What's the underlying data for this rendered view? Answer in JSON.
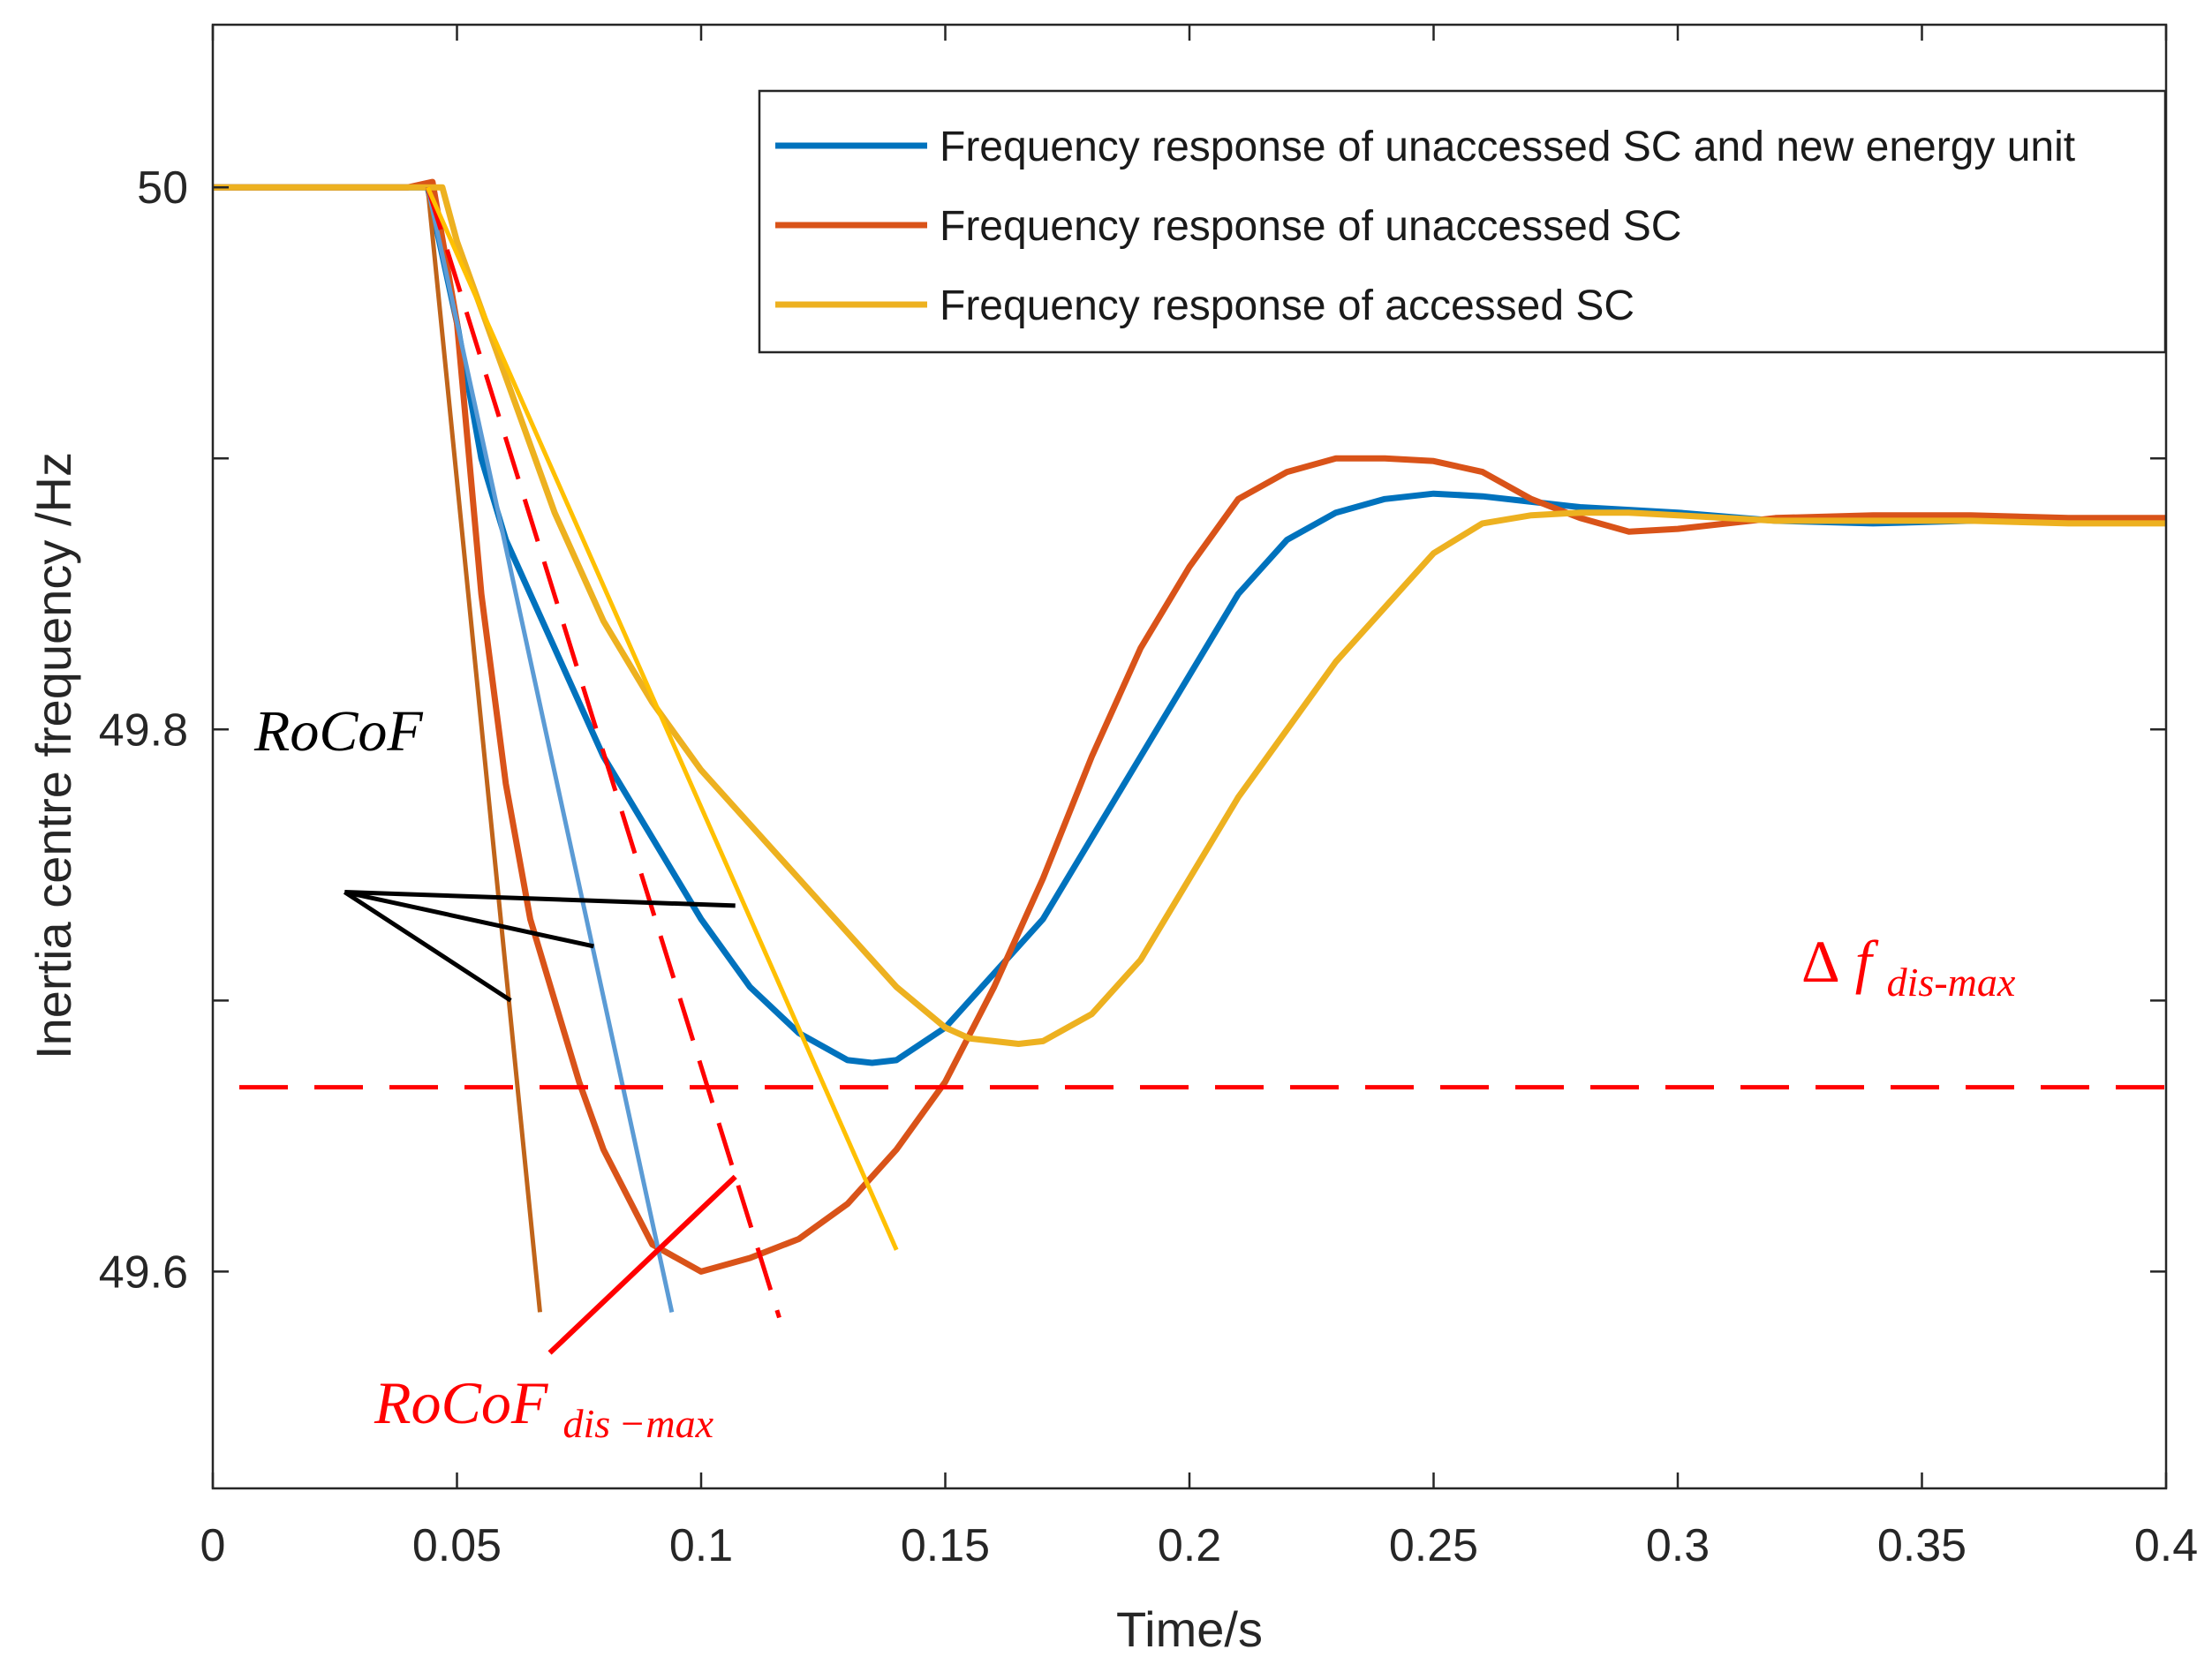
{
  "chart_data": {
    "type": "line",
    "title": "",
    "xlabel": "Time/s",
    "ylabel": "Inertia centre frequency /Hz",
    "xlim": [
      0,
      0.4
    ],
    "ylim": [
      49.52,
      50.06
    ],
    "xticks": [
      0,
      0.05,
      0.1,
      0.15,
      0.2,
      0.25,
      0.3,
      0.35,
      0.4
    ],
    "xtick_labels": [
      "0",
      "0.05",
      "0.1",
      "0.15",
      "0.2",
      "0.25",
      "0.3",
      "0.35",
      "0.4"
    ],
    "yticks": [
      49.6,
      49.7,
      49.8,
      49.9,
      50
    ],
    "ytick_labels": [
      "49.6",
      "",
      "49.8",
      "",
      "50"
    ],
    "grid": false,
    "legend_position": "top-right",
    "series": [
      {
        "name": "Frequency response of unaccessed SC and new energy unit",
        "color": "#0072BD",
        "x": [
          0,
          0.04,
          0.044,
          0.05,
          0.055,
          0.06,
          0.07,
          0.08,
          0.09,
          0.1,
          0.11,
          0.12,
          0.13,
          0.135,
          0.14,
          0.15,
          0.16,
          0.17,
          0.18,
          0.19,
          0.2,
          0.21,
          0.22,
          0.23,
          0.24,
          0.25,
          0.26,
          0.27,
          0.28,
          0.29,
          0.3,
          0.32,
          0.34,
          0.36,
          0.38,
          0.4
        ],
        "y": [
          50.0,
          50.0,
          50.0,
          49.95,
          49.9,
          49.87,
          49.83,
          49.79,
          49.76,
          49.73,
          49.705,
          49.688,
          49.678,
          49.677,
          49.678,
          49.69,
          49.71,
          49.73,
          49.76,
          49.79,
          49.82,
          49.85,
          49.87,
          49.88,
          49.885,
          49.887,
          49.886,
          49.884,
          49.882,
          49.881,
          49.88,
          49.877,
          49.876,
          49.877,
          49.877,
          49.877
        ]
      },
      {
        "name": "Frequency response of unaccessed SC",
        "color": "#D95319",
        "x": [
          0,
          0.04,
          0.045,
          0.05,
          0.055,
          0.06,
          0.065,
          0.07,
          0.075,
          0.08,
          0.09,
          0.1,
          0.11,
          0.12,
          0.13,
          0.14,
          0.15,
          0.16,
          0.17,
          0.18,
          0.19,
          0.2,
          0.21,
          0.22,
          0.23,
          0.24,
          0.25,
          0.26,
          0.27,
          0.28,
          0.29,
          0.3,
          0.32,
          0.34,
          0.36,
          0.38,
          0.4
        ],
        "y": [
          50.0,
          50.0,
          50.002,
          49.95,
          49.85,
          49.78,
          49.73,
          49.7,
          49.67,
          49.645,
          49.61,
          49.6,
          49.605,
          49.612,
          49.625,
          49.645,
          49.67,
          49.705,
          49.745,
          49.79,
          49.83,
          49.86,
          49.885,
          49.895,
          49.9,
          49.9,
          49.899,
          49.895,
          49.885,
          49.878,
          49.873,
          49.874,
          49.878,
          49.879,
          49.879,
          49.878,
          49.878
        ]
      },
      {
        "name": "Frequency response of accessed SC",
        "color": "#EDB120",
        "x": [
          0,
          0.04,
          0.047,
          0.05,
          0.06,
          0.07,
          0.08,
          0.09,
          0.1,
          0.11,
          0.12,
          0.13,
          0.14,
          0.15,
          0.155,
          0.16,
          0.165,
          0.17,
          0.18,
          0.19,
          0.2,
          0.21,
          0.22,
          0.23,
          0.24,
          0.25,
          0.26,
          0.27,
          0.28,
          0.29,
          0.3,
          0.32,
          0.34,
          0.36,
          0.38,
          0.4
        ],
        "y": [
          50.0,
          50.0,
          50.0,
          49.98,
          49.93,
          49.88,
          49.84,
          49.81,
          49.785,
          49.765,
          49.745,
          49.725,
          49.705,
          49.69,
          49.686,
          49.685,
          49.684,
          49.685,
          49.695,
          49.715,
          49.745,
          49.775,
          49.8,
          49.825,
          49.845,
          49.865,
          49.876,
          49.879,
          49.88,
          49.88,
          49.879,
          49.877,
          49.877,
          49.877,
          49.876,
          49.876
        ]
      }
    ],
    "annotations": {
      "rocof_label": "RoCoF",
      "rocof_max_base": "RoCoF",
      "rocof_max_sub": "dis −max",
      "delta_symbol": "Δ",
      "delta_f_var": "f",
      "delta_f_sub": "dis-max",
      "delta_f_threshold": 49.668,
      "annotation_color": "#FF0000",
      "tangent_lines": [
        {
          "color": "#C0641A",
          "x1": 0.044,
          "y1": 50.0,
          "x2": 0.067,
          "y2": 49.585
        },
        {
          "color": "#5B9BD5",
          "x1": 0.044,
          "y1": 50.0,
          "x2": 0.094,
          "y2": 49.585
        },
        {
          "color": "#FF0000",
          "dashed": true,
          "x1": 0.044,
          "y1": 50.0,
          "x2": 0.116,
          "y2": 49.583
        },
        {
          "color": "#FFC000",
          "x1": 0.044,
          "y1": 50.0,
          "x2": 0.14,
          "y2": 49.608
        }
      ],
      "rocof_pointer_lines": [
        {
          "x1": 0.027,
          "y1": 49.74,
          "x2": 0.107,
          "y2": 49.735
        },
        {
          "x1": 0.027,
          "y1": 49.74,
          "x2": 0.078,
          "y2": 49.72
        },
        {
          "x1": 0.027,
          "y1": 49.74,
          "x2": 0.061,
          "y2": 49.7
        }
      ],
      "rocof_max_pointer": {
        "x1": 0.069,
        "y1": 49.57,
        "x2": 0.107,
        "y2": 49.635
      }
    }
  }
}
